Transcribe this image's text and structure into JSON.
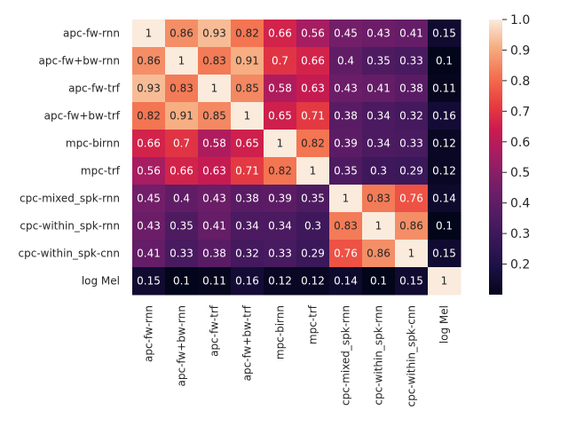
{
  "chart_data": {
    "type": "heatmap",
    "title": "",
    "xlabel": "",
    "ylabel": "",
    "rows": [
      "apc-fw-rnn",
      "apc-fw+bw-rnn",
      "apc-fw-trf",
      "apc-fw+bw-trf",
      "mpc-birnn",
      "mpc-trf",
      "cpc-mixed_spk-rnn",
      "cpc-within_spk-rnn",
      "cpc-within_spk-cnn",
      "log Mel"
    ],
    "columns": [
      "apc-fw-rnn",
      "apc-fw+bw-rnn",
      "apc-fw-trf",
      "apc-fw+bw-trf",
      "mpc-birnn",
      "mpc-trf",
      "cpc-mixed_spk-rnn",
      "cpc-within_spk-rnn",
      "cpc-within_spk-cnn",
      "log Mel"
    ],
    "values": [
      [
        1,
        0.86,
        0.93,
        0.82,
        0.66,
        0.56,
        0.45,
        0.43,
        0.41,
        0.15
      ],
      [
        0.86,
        1,
        0.83,
        0.91,
        0.7,
        0.66,
        0.4,
        0.35,
        0.33,
        0.1
      ],
      [
        0.93,
        0.83,
        1,
        0.85,
        0.58,
        0.63,
        0.43,
        0.41,
        0.38,
        0.11
      ],
      [
        0.82,
        0.91,
        0.85,
        1,
        0.65,
        0.71,
        0.38,
        0.34,
        0.32,
        0.16
      ],
      [
        0.66,
        0.7,
        0.58,
        0.65,
        1,
        0.82,
        0.39,
        0.34,
        0.33,
        0.12
      ],
      [
        0.56,
        0.66,
        0.63,
        0.71,
        0.82,
        1,
        0.35,
        0.3,
        0.29,
        0.12
      ],
      [
        0.45,
        0.4,
        0.43,
        0.38,
        0.39,
        0.35,
        1,
        0.83,
        0.76,
        0.14
      ],
      [
        0.43,
        0.35,
        0.41,
        0.34,
        0.34,
        0.3,
        0.83,
        1,
        0.86,
        0.1
      ],
      [
        0.41,
        0.33,
        0.38,
        0.32,
        0.33,
        0.29,
        0.76,
        0.86,
        1,
        0.15
      ],
      [
        0.15,
        0.1,
        0.11,
        0.16,
        0.12,
        0.12,
        0.14,
        0.1,
        0.15,
        1
      ]
    ],
    "colorbar": {
      "range": [
        0.1,
        1.0
      ],
      "ticks": [
        "0.2",
        "0.3",
        "0.4",
        "0.5",
        "0.6",
        "0.7",
        "0.8",
        "0.9",
        "1.0"
      ],
      "colormap": "rocket"
    }
  }
}
